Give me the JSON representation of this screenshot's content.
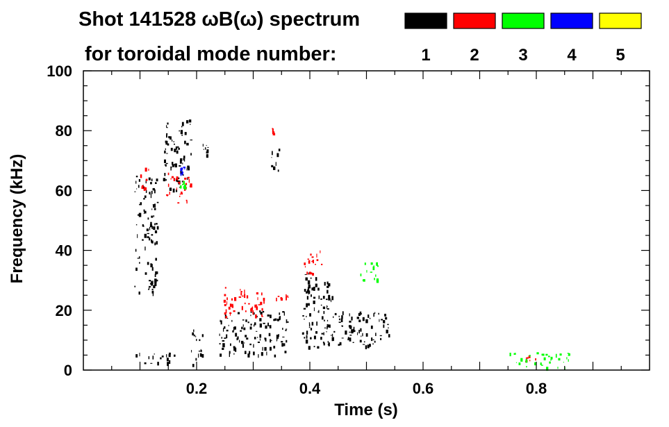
{
  "chart_data": {
    "type": "heatmap",
    "title": "Shot 141528 ωB(ω) spectrum",
    "subtitle": "for toroidal mode number:",
    "xlabel": "Time (s)",
    "ylabel": "Frequency (kHz)",
    "xlim": [
      0.0,
      1.0
    ],
    "ylim": [
      0,
      100
    ],
    "x_ticks": [
      {
        "value": 0.2,
        "label": "0.2"
      },
      {
        "value": 0.4,
        "label": "0.4"
      },
      {
        "value": 0.6,
        "label": "0.6"
      },
      {
        "value": 0.8,
        "label": "0.8"
      }
    ],
    "y_ticks": [
      {
        "value": 0,
        "label": "0"
      },
      {
        "value": 20,
        "label": "20"
      },
      {
        "value": 40,
        "label": "40"
      },
      {
        "value": 60,
        "label": "60"
      },
      {
        "value": 80,
        "label": "80"
      },
      {
        "value": 100,
        "label": "100"
      }
    ],
    "grid": false,
    "legend_placement": "top-right",
    "mode_legend": [
      {
        "label": "1",
        "color": "#000000"
      },
      {
        "label": "2",
        "color": "#ff0000"
      },
      {
        "label": "3",
        "color": "#00ff00"
      },
      {
        "label": "4",
        "color": "#0000ff"
      },
      {
        "label": "5",
        "color": "#ffff00"
      }
    ],
    "regions": [
      {
        "mode": 1,
        "t": [
          0.09,
          0.13
        ],
        "f": [
          25,
          65
        ]
      },
      {
        "mode": 1,
        "t": [
          0.09,
          0.16
        ],
        "f": [
          2,
          6
        ]
      },
      {
        "mode": 1,
        "t": [
          0.14,
          0.19
        ],
        "f": [
          60,
          84
        ]
      },
      {
        "mode": 1,
        "t": [
          0.19,
          0.21
        ],
        "f": [
          1,
          14
        ]
      },
      {
        "mode": 1,
        "t": [
          0.21,
          0.22
        ],
        "f": [
          72,
          76
        ]
      },
      {
        "mode": 1,
        "t": [
          0.24,
          0.36
        ],
        "f": [
          5,
          20
        ]
      },
      {
        "mode": 1,
        "t": [
          0.33,
          0.345
        ],
        "f": [
          66,
          75
        ]
      },
      {
        "mode": 1,
        "t": [
          0.385,
          0.44
        ],
        "f": [
          7,
          33
        ]
      },
      {
        "mode": 1,
        "t": [
          0.44,
          0.54
        ],
        "f": [
          8,
          20
        ]
      },
      {
        "mode": 2,
        "t": [
          0.1,
          0.115
        ],
        "f": [
          60,
          68
        ]
      },
      {
        "mode": 2,
        "t": [
          0.145,
          0.19
        ],
        "f": [
          56,
          66
        ]
      },
      {
        "mode": 2,
        "t": [
          0.245,
          0.32
        ],
        "f": [
          18,
          28
        ]
      },
      {
        "mode": 2,
        "t": [
          0.34,
          0.36
        ],
        "f": [
          24,
          26
        ]
      },
      {
        "mode": 2,
        "t": [
          0.385,
          0.42
        ],
        "f": [
          32,
          40
        ]
      },
      {
        "mode": 2,
        "t": [
          0.33,
          0.34
        ],
        "f": [
          79,
          81
        ]
      },
      {
        "mode": 2,
        "t": [
          0.78,
          0.8
        ],
        "f": [
          3,
          5
        ]
      },
      {
        "mode": 3,
        "t": [
          0.17,
          0.18
        ],
        "f": [
          60,
          64
        ]
      },
      {
        "mode": 3,
        "t": [
          0.48,
          0.52
        ],
        "f": [
          30,
          36
        ]
      },
      {
        "mode": 3,
        "t": [
          0.75,
          0.86
        ],
        "f": [
          1,
          6
        ]
      },
      {
        "mode": 4,
        "t": [
          0.17,
          0.18
        ],
        "f": [
          66,
          68
        ]
      }
    ]
  }
}
